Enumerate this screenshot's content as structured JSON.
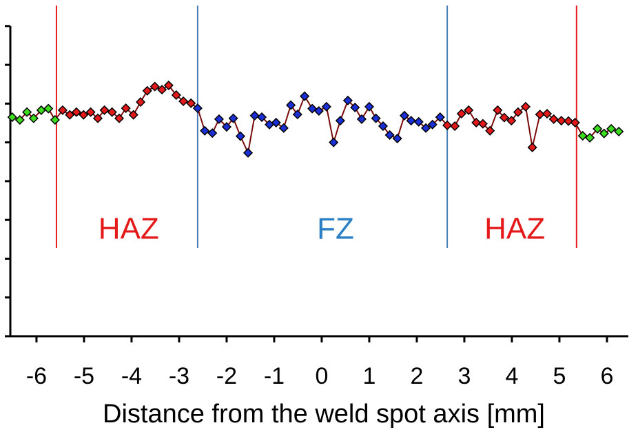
{
  "chart_data": {
    "type": "line",
    "xlabel": "Distance from the weld spot axis [mm]",
    "xlim": [
      -6.55,
      6.45
    ],
    "xticks": [
      -6,
      -5,
      -4,
      -3,
      -2,
      -1,
      0,
      1,
      2,
      3,
      4,
      5,
      6
    ],
    "ylim": [
      0,
      8.53
    ],
    "yticks": [
      0,
      1,
      2,
      3,
      4,
      5,
      6,
      7,
      8
    ],
    "line_color": "#7a0a0a",
    "series": [
      {
        "color": "#3ddc1e",
        "x": [
          -6.51,
          -6.35,
          -6.2,
          -6.06,
          -5.9,
          -5.75,
          -5.61
        ],
        "values": [
          5.65,
          5.58,
          5.78,
          5.62,
          5.83,
          5.87,
          5.58
        ]
      },
      {
        "color": "#e41a1a",
        "x": [
          -5.45,
          -5.3,
          -5.16,
          -5.01,
          -4.86,
          -4.71,
          -4.57,
          -4.41,
          -4.26,
          -4.12,
          -3.96,
          -3.81,
          -3.67,
          -3.51,
          -3.36,
          -3.22,
          -3.06,
          -2.91,
          -2.75
        ],
        "values": [
          5.83,
          5.71,
          5.78,
          5.71,
          5.78,
          5.62,
          5.83,
          5.78,
          5.62,
          5.88,
          5.71,
          6.04,
          6.33,
          6.44,
          6.36,
          6.47,
          6.22,
          6.06,
          6.01
        ]
      },
      {
        "color": "#1a2fd6",
        "x": [
          -2.61,
          -2.46,
          -2.3,
          -2.16,
          -2.0,
          -1.86,
          -1.71,
          -1.55,
          -1.41,
          -1.26,
          -1.1,
          -0.96,
          -0.8,
          -0.65,
          -0.51,
          -0.36,
          -0.2,
          -0.06,
          0.1,
          0.25,
          0.39,
          0.55,
          0.7,
          0.84,
          1.0,
          1.14,
          1.29,
          1.43,
          1.59,
          1.74,
          1.88,
          2.04,
          2.19,
          2.33,
          2.49
        ],
        "values": [
          5.88,
          5.3,
          5.24,
          5.6,
          5.4,
          5.62,
          5.16,
          4.73,
          5.69,
          5.65,
          5.46,
          5.51,
          5.37,
          5.96,
          5.72,
          6.19,
          5.87,
          5.81,
          5.92,
          5.0,
          5.56,
          6.08,
          5.9,
          5.6,
          5.92,
          5.62,
          5.42,
          5.19,
          5.1,
          5.69,
          5.56,
          5.53,
          5.37,
          5.46,
          5.65
        ]
      },
      {
        "color": "#e41a1a",
        "x": [
          2.64,
          2.8,
          2.94,
          3.09,
          3.25,
          3.39,
          3.54,
          3.7,
          3.84,
          3.99,
          4.13,
          4.29,
          4.43,
          4.59,
          4.74,
          4.88,
          5.04,
          5.19,
          5.33
        ],
        "values": [
          5.44,
          5.42,
          5.74,
          5.83,
          5.51,
          5.48,
          5.3,
          5.83,
          5.64,
          5.56,
          5.78,
          5.92,
          4.87,
          5.72,
          5.74,
          5.6,
          5.56,
          5.55,
          5.51
        ]
      },
      {
        "color": "#3ddc1e",
        "x": [
          5.49,
          5.64,
          5.8,
          5.94,
          6.09,
          6.25
        ],
        "values": [
          5.17,
          5.12,
          5.35,
          5.23,
          5.35,
          5.28
        ]
      }
    ],
    "vlines": [
      {
        "x": -5.58,
        "color": "#e41a1a"
      },
      {
        "x": -2.61,
        "color": "#4a7fb5"
      },
      {
        "x": 2.64,
        "color": "#4a7fb5"
      },
      {
        "x": 5.36,
        "color": "#e41a1a"
      }
    ],
    "annotations": [
      {
        "text": "HAZ",
        "x": -4.06,
        "y": 2.72,
        "color": "#e41a1a"
      },
      {
        "text": "FZ",
        "x": 0.29,
        "y": 2.72,
        "color": "#2a7fc4"
      },
      {
        "text": "HAZ",
        "x": 4.06,
        "y": 2.72,
        "color": "#e41a1a"
      }
    ]
  }
}
